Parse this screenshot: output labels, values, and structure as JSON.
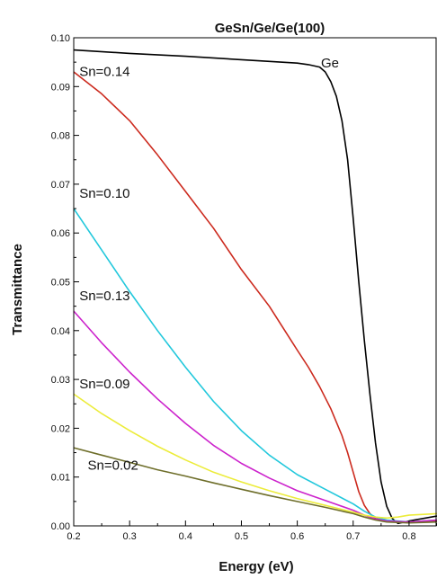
{
  "chart_data": {
    "type": "line",
    "title": "GeSn/Ge/Ge(100)",
    "xlabel": "Energy (eV)",
    "ylabel": "Transmittance",
    "xlim": [
      0.2,
      0.85
    ],
    "ylim": [
      0.0,
      0.1
    ],
    "x_ticks": [
      "0.2",
      "0.3",
      "0.4",
      "0.5",
      "0.6",
      "0.7",
      "0.8"
    ],
    "y_ticks": [
      "0.00",
      "0.01",
      "0.02",
      "0.03",
      "0.04",
      "0.05",
      "0.06",
      "0.07",
      "0.08",
      "0.09",
      "0.10"
    ],
    "grid": false,
    "legend": "none",
    "series": [
      {
        "name": "Ge",
        "color": "#000000",
        "x": [
          0.2,
          0.3,
          0.4,
          0.5,
          0.6,
          0.62,
          0.64,
          0.65,
          0.66,
          0.67,
          0.68,
          0.69,
          0.7,
          0.71,
          0.72,
          0.73,
          0.74,
          0.75,
          0.76,
          0.77,
          0.78,
          0.8,
          0.85
        ],
        "y": [
          0.0975,
          0.0968,
          0.0962,
          0.0955,
          0.0948,
          0.0945,
          0.094,
          0.093,
          0.091,
          0.088,
          0.083,
          0.075,
          0.063,
          0.05,
          0.038,
          0.027,
          0.017,
          0.009,
          0.004,
          0.0015,
          0.0005,
          0.001,
          0.002
        ]
      },
      {
        "name": "Sn=0.14",
        "color": "#cc2a1e",
        "x": [
          0.2,
          0.25,
          0.3,
          0.35,
          0.4,
          0.45,
          0.5,
          0.55,
          0.6,
          0.62,
          0.64,
          0.66,
          0.68,
          0.69,
          0.7,
          0.71,
          0.72,
          0.73,
          0.74,
          0.76,
          0.8,
          0.85
        ],
        "y": [
          0.093,
          0.0885,
          0.083,
          0.076,
          0.0685,
          0.061,
          0.0525,
          0.045,
          0.036,
          0.0325,
          0.0285,
          0.024,
          0.0185,
          0.015,
          0.011,
          0.007,
          0.0042,
          0.0025,
          0.0015,
          0.001,
          0.0008,
          0.001
        ]
      },
      {
        "name": "Sn=0.10",
        "color": "#22c8dc",
        "x": [
          0.2,
          0.25,
          0.3,
          0.35,
          0.4,
          0.45,
          0.5,
          0.55,
          0.6,
          0.65,
          0.7,
          0.72,
          0.74,
          0.76,
          0.8,
          0.85
        ],
        "y": [
          0.065,
          0.0565,
          0.048,
          0.04,
          0.0325,
          0.0255,
          0.0195,
          0.0145,
          0.0105,
          0.0075,
          0.0045,
          0.003,
          0.0018,
          0.0012,
          0.0008,
          0.0012
        ]
      },
      {
        "name": "Sn=0.13",
        "color": "#cc22cc",
        "x": [
          0.2,
          0.25,
          0.3,
          0.35,
          0.4,
          0.45,
          0.5,
          0.55,
          0.6,
          0.65,
          0.7,
          0.72,
          0.74,
          0.76,
          0.8,
          0.85
        ],
        "y": [
          0.044,
          0.0375,
          0.0315,
          0.026,
          0.021,
          0.0165,
          0.0128,
          0.0098,
          0.0072,
          0.0052,
          0.0032,
          0.0022,
          0.0014,
          0.001,
          0.0008,
          0.0012
        ]
      },
      {
        "name": "Sn=0.09",
        "color": "#ecec3a",
        "x": [
          0.2,
          0.25,
          0.3,
          0.35,
          0.4,
          0.45,
          0.5,
          0.55,
          0.6,
          0.65,
          0.7,
          0.72,
          0.74,
          0.76,
          0.78,
          0.8,
          0.85
        ],
        "y": [
          0.027,
          0.023,
          0.0195,
          0.0163,
          0.0135,
          0.011,
          0.009,
          0.0072,
          0.0056,
          0.0042,
          0.0028,
          0.0022,
          0.0018,
          0.0016,
          0.0018,
          0.0022,
          0.0025
        ]
      },
      {
        "name": "Sn=0.02",
        "color": "#6e6e2a",
        "x": [
          0.2,
          0.25,
          0.3,
          0.35,
          0.4,
          0.45,
          0.5,
          0.55,
          0.6,
          0.65,
          0.7,
          0.72,
          0.74,
          0.76,
          0.8,
          0.85
        ],
        "y": [
          0.016,
          0.0145,
          0.013,
          0.0115,
          0.0102,
          0.0088,
          0.0075,
          0.0062,
          0.005,
          0.0038,
          0.0025,
          0.0018,
          0.0012,
          0.0008,
          0.0006,
          0.0008
        ]
      }
    ]
  }
}
